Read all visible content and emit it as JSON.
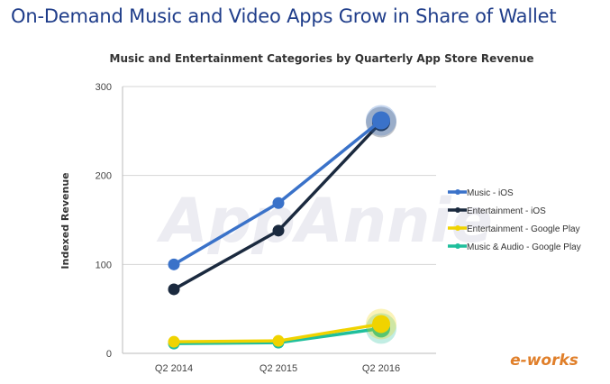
{
  "headline": "On-Demand Music and Video Apps Grow in Share of Wallet",
  "watermark": "AppAnnie",
  "logo": "e-works",
  "colors": {
    "music_ios": "#3a72c9",
    "entertainment_ios": "#1b2a3f",
    "entertainment_google": "#f0d300",
    "music_google": "#1fbf9c"
  },
  "chart_data": {
    "type": "line",
    "title": "Music and Entertainment Categories by Quarterly App Store Revenue",
    "ylabel": "Indexed Revenue",
    "categories": [
      "Q2 2014",
      "Q2 2015",
      "Q2 2016"
    ],
    "yticks": [
      "0",
      "100",
      "200",
      "300"
    ],
    "ylim": [
      0,
      300
    ],
    "grid": true,
    "legend": "right",
    "series": [
      {
        "name": "Music - iOS",
        "values": [
          100,
          169,
          262
        ],
        "color": "#3a72c9"
      },
      {
        "name": "Entertainment - iOS",
        "values": [
          72,
          138,
          260
        ],
        "color": "#1b2a3f"
      },
      {
        "name": "Entertainment - Google Play",
        "values": [
          13,
          14,
          33
        ],
        "color": "#f0d300"
      },
      {
        "name": "Music & Audio - Google Play",
        "values": [
          11,
          12,
          28
        ],
        "color": "#1fbf9c"
      }
    ]
  }
}
